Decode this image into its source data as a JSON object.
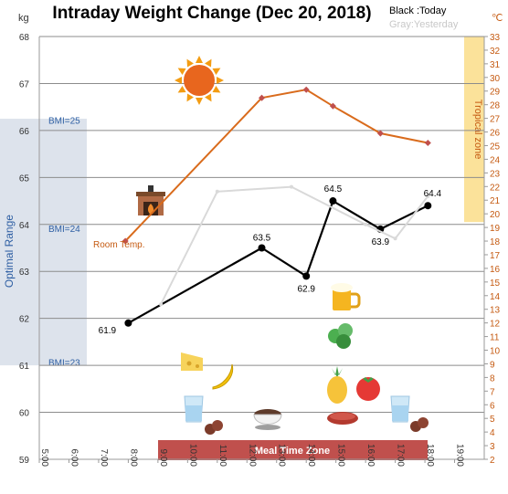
{
  "chart_data": {
    "type": "line",
    "title": "Intraday Weight Change (Dec 20, 2018)",
    "legend": {
      "today": "Black :Today",
      "yesterday": "Gray:Yesterday"
    },
    "y_left": {
      "unit": "kg",
      "min": 59,
      "max": 68,
      "ticks": [
        "59",
        "60",
        "61",
        "62",
        "63",
        "64",
        "65",
        "66",
        "67",
        "68"
      ]
    },
    "y_right": {
      "unit": "℃",
      "min": 2,
      "max": 33,
      "ticks": [
        "2",
        "3",
        "4",
        "5",
        "6",
        "7",
        "8",
        "9",
        "10",
        "11",
        "12",
        "13",
        "14",
        "15",
        "16",
        "17",
        "18",
        "19",
        "20",
        "21",
        "22",
        "23",
        "24",
        "25",
        "26",
        "27",
        "28",
        "29",
        "30",
        "31",
        "32",
        "33"
      ]
    },
    "x": {
      "min": 5,
      "max": 20,
      "ticks": [
        "5:00",
        "6:00",
        "7:00",
        "8:00",
        "9:00",
        "10:00",
        "11:00",
        "12:00",
        "13:00",
        "14:00",
        "15:00",
        "16:00",
        "17:00",
        "18:00",
        "19:00"
      ]
    },
    "series": [
      {
        "name": "Today",
        "color": "#000000",
        "points": [
          {
            "x": 8.0,
            "y": 61.9,
            "label": "61.9"
          },
          {
            "x": 12.5,
            "y": 63.5,
            "label": "63.5"
          },
          {
            "x": 14.0,
            "y": 62.9,
            "label": "62.9"
          },
          {
            "x": 14.9,
            "y": 64.5,
            "label": "64.5"
          },
          {
            "x": 16.5,
            "y": 63.9,
            "label": "63.9"
          },
          {
            "x": 18.1,
            "y": 64.4,
            "label": "64.4"
          }
        ]
      },
      {
        "name": "Yesterday",
        "color": "#d9d9d9",
        "points": [
          {
            "x": 9.1,
            "y": 62.3
          },
          {
            "x": 11.0,
            "y": 64.7
          },
          {
            "x": 13.5,
            "y": 64.8
          },
          {
            "x": 16.0,
            "y": 64.0
          },
          {
            "x": 17.0,
            "y": 63.7
          },
          {
            "x": 18.1,
            "y": 64.6
          }
        ]
      },
      {
        "name": "Room Temp.",
        "color": "#d96b1c",
        "axis": "right",
        "points": [
          {
            "x": 7.9,
            "y": 18
          },
          {
            "x": 12.5,
            "y": 28.5
          },
          {
            "x": 14.0,
            "y": 29.1
          },
          {
            "x": 14.9,
            "y": 27.9
          },
          {
            "x": 16.5,
            "y": 25.9
          },
          {
            "x": 18.1,
            "y": 25.2
          }
        ]
      }
    ],
    "zones": {
      "optimal_range": "Optimal Range",
      "bmi_25": "BMI=25",
      "bmi_24": "BMI=24",
      "bmi_23": "BMI=23",
      "tropical_zone": "Tropical zone",
      "meal_time_zone": "Meal Time Zone",
      "room_temp": "Room Temp."
    },
    "colors": {
      "optimal_band": "#dde3ec",
      "optimal_text": "#2e5fa3",
      "tropical_band": "#fbe29a",
      "tropical_text": "#c55a11",
      "meal_band": "#c0504d",
      "temp_marker": "#c0504d"
    },
    "icons": [
      "sun-icon",
      "fireplace-icon",
      "beer-icon",
      "lettuce-icon",
      "tomato-icon",
      "pineapple-icon",
      "cheese-icon",
      "banana-icon",
      "water-glass-icon",
      "sausage-icon",
      "soup-icon",
      "steak-icon"
    ]
  }
}
